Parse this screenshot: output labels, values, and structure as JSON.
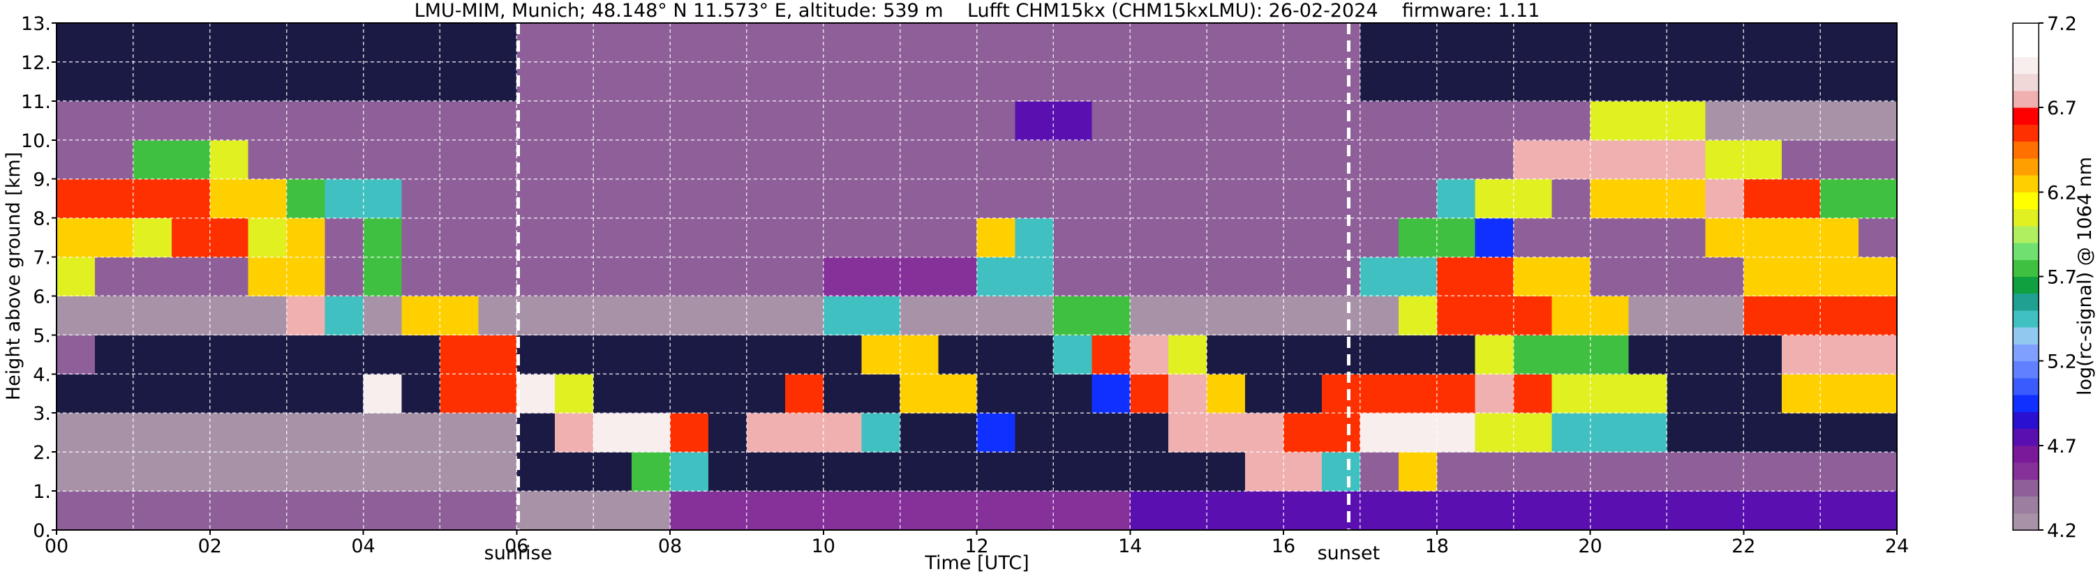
{
  "chart_data": {
    "type": "heatmap",
    "title": "LMU-MIM, Munich; 48.148° N 11.573° E, altitude: 539 m    Lufft CHM15kx (CHM15kxLMU): 26-02-2024    firmware: 1.11",
    "xlabel": "Time [UTC]",
    "ylabel": "Height above ground [km]",
    "xlim": [
      0,
      24
    ],
    "ylim": [
      0,
      13
    ],
    "xticks": [
      {
        "value": 0,
        "label": "00"
      },
      {
        "value": 2,
        "label": "02"
      },
      {
        "value": 4,
        "label": "04"
      },
      {
        "value": 6,
        "label": "06"
      },
      {
        "value": 8,
        "label": "08"
      },
      10,
      12,
      14,
      16,
      18,
      20,
      22,
      24
    ],
    "xminorticks": [
      1,
      3,
      5,
      7,
      9,
      11,
      13,
      15,
      17,
      19,
      21,
      23
    ],
    "yticks": [
      {
        "value": 0,
        "label": "0."
      },
      {
        "value": 1,
        "label": "1."
      },
      {
        "value": 2,
        "label": "2."
      },
      {
        "value": 3,
        "label": "3."
      },
      {
        "value": 4,
        "label": "4."
      },
      {
        "value": 5,
        "label": "5."
      },
      {
        "value": 6,
        "label": "6."
      },
      {
        "value": 7,
        "label": "7."
      },
      {
        "value": 8,
        "label": "8."
      },
      {
        "value": 9,
        "label": "9."
      },
      {
        "value": 10,
        "label": "10."
      },
      {
        "value": 11,
        "label": "11."
      },
      {
        "value": 12,
        "label": "12."
      },
      {
        "value": 13,
        "label": "13."
      }
    ],
    "grid": true,
    "annotations": [
      {
        "text": "sunrise",
        "x": 6.02
      },
      {
        "text": "sunset",
        "x": 16.85
      }
    ],
    "x": [
      0,
      0.5,
      1,
      1.5,
      2,
      2.5,
      3,
      3.5,
      4,
      4.5,
      5,
      5.5,
      6,
      6.5,
      7,
      7.5,
      8,
      8.5,
      9,
      9.5,
      10,
      10.5,
      11,
      11.5,
      12,
      12.5,
      13,
      13.5,
      14,
      14.5,
      15,
      15.5,
      16,
      16.5,
      17,
      17.5,
      18,
      18.5,
      19,
      19.5,
      20,
      20.5,
      21,
      21.5,
      22,
      22.5,
      23,
      23.5,
      24
    ],
    "y": [
      0,
      1,
      2,
      3,
      4,
      5,
      6,
      7,
      8,
      9,
      10,
      11,
      12,
      13
    ],
    "z": [
      [
        4.5,
        4.5,
        4.5,
        4.5,
        4.5,
        4.5,
        4.5,
        4.5,
        4.5,
        4.5,
        4.5,
        4.5,
        4.3,
        4.3,
        4.3,
        4.3,
        4.6,
        4.6,
        4.6,
        4.6,
        4.6,
        4.6,
        4.6,
        4.6,
        4.6,
        4.6,
        4.6,
        4.6,
        4.7,
        4.7,
        4.7,
        4.7,
        4.8,
        4.8,
        4.8,
        4.8,
        4.8,
        4.8,
        4.8,
        4.8,
        4.8,
        4.8,
        4.8,
        4.8,
        4.8,
        4.8,
        4.8,
        4.8
      ],
      [
        4.3,
        4.3,
        4.3,
        4.3,
        4.3,
        4.3,
        4.3,
        4.3,
        4.3,
        4.3,
        4.3,
        4.3,
        4.0,
        4.0,
        4.0,
        5.8,
        5.5,
        4.0,
        4.0,
        4.0,
        4.0,
        4.0,
        4.0,
        4.0,
        4.0,
        4.0,
        4.0,
        4.0,
        4.0,
        4.0,
        4.0,
        6.8,
        6.8,
        5.5,
        4.4,
        6.3,
        4.4,
        4.4,
        4.4,
        4.4,
        4.4,
        4.4,
        4.4,
        4.4,
        4.4,
        4.4,
        4.4,
        4.4
      ],
      [
        4.2,
        4.2,
        4.2,
        4.2,
        4.2,
        4.2,
        4.2,
        4.2,
        4.2,
        4.2,
        4.2,
        4.2,
        4.1,
        6.8,
        7.0,
        6.9,
        6.5,
        4.1,
        6.8,
        6.8,
        6.8,
        5.5,
        4.1,
        4.1,
        5.0,
        4.1,
        4.1,
        4.1,
        4.1,
        6.8,
        6.8,
        6.8,
        6.5,
        6.5,
        7.0,
        7.0,
        7.0,
        6.0,
        6.0,
        5.5,
        5.5,
        5.5,
        4.1,
        4.1,
        4.1,
        4.1,
        4.1,
        4.1
      ],
      [
        4.1,
        4.1,
        4.1,
        4.1,
        4.1,
        4.1,
        4.1,
        4.1,
        6.9,
        4.1,
        6.5,
        6.5,
        7.0,
        6.0,
        4.1,
        4.1,
        4.1,
        4.1,
        4.1,
        6.5,
        4.1,
        4.1,
        6.2,
        6.2,
        4.1,
        4.1,
        4.1,
        5.0,
        6.5,
        6.8,
        6.3,
        4.1,
        4.1,
        6.5,
        6.6,
        6.6,
        6.6,
        6.8,
        6.5,
        6.0,
        6.0,
        6.0,
        4.1,
        4.1,
        4.1,
        6.3,
        6.3,
        6.3
      ],
      [
        4.5,
        4.1,
        4.1,
        4.1,
        4.1,
        4.1,
        4.1,
        4.1,
        4.1,
        4.1,
        6.5,
        6.5,
        4.1,
        4.1,
        4.1,
        4.1,
        4.1,
        4.1,
        4.1,
        4.1,
        4.1,
        6.3,
        6.3,
        4.1,
        4.1,
        4.1,
        5.5,
        6.5,
        6.8,
        6.0,
        4.1,
        4.1,
        4.1,
        4.1,
        4.1,
        4.1,
        4.1,
        6.0,
        5.8,
        5.8,
        5.8,
        4.1,
        4.1,
        4.1,
        4.1,
        6.8,
        6.8,
        6.8
      ],
      [
        4.3,
        4.3,
        4.3,
        4.3,
        4.3,
        4.3,
        6.8,
        5.5,
        4.3,
        6.3,
        6.3,
        4.3,
        4.3,
        4.3,
        4.3,
        4.3,
        4.3,
        4.3,
        4.3,
        4.3,
        5.5,
        5.5,
        4.3,
        4.3,
        4.3,
        4.3,
        5.8,
        5.8,
        4.3,
        4.3,
        4.3,
        4.3,
        4.3,
        4.3,
        4.3,
        6.0,
        6.5,
        6.5,
        6.5,
        6.2,
        6.2,
        4.3,
        4.3,
        4.3,
        6.5,
        6.5,
        6.5,
        6.5
      ],
      [
        6.0,
        4.4,
        4.4,
        4.4,
        4.4,
        6.2,
        6.2,
        4.4,
        5.8,
        4.4,
        4.4,
        4.4,
        4.4,
        4.4,
        4.4,
        4.4,
        4.4,
        4.4,
        4.4,
        4.4,
        4.6,
        4.6,
        4.6,
        4.6,
        5.5,
        5.5,
        4.4,
        4.4,
        4.4,
        4.4,
        4.4,
        4.4,
        4.4,
        4.4,
        5.5,
        5.5,
        6.5,
        6.5,
        6.2,
        6.2,
        4.4,
        4.4,
        4.4,
        4.4,
        6.3,
        6.3,
        6.3,
        6.3
      ],
      [
        6.3,
        6.3,
        6.0,
        6.5,
        6.5,
        6.0,
        6.2,
        4.4,
        5.8,
        4.4,
        4.4,
        4.4,
        4.4,
        4.4,
        4.4,
        4.4,
        4.4,
        4.4,
        4.4,
        4.4,
        4.4,
        4.4,
        4.4,
        4.4,
        6.2,
        5.5,
        4.4,
        4.4,
        4.4,
        4.4,
        4.4,
        4.4,
        4.4,
        4.4,
        4.4,
        5.8,
        5.8,
        5.0,
        4.4,
        4.4,
        4.4,
        4.4,
        4.4,
        6.3,
        6.3,
        6.3,
        6.3,
        4.4
      ],
      [
        6.5,
        6.5,
        6.5,
        6.5,
        6.2,
        6.2,
        5.8,
        5.5,
        5.5,
        4.4,
        4.4,
        4.4,
        4.4,
        4.4,
        4.4,
        4.4,
        4.4,
        4.5,
        4.5,
        4.5,
        4.5,
        4.5,
        4.5,
        4.5,
        4.4,
        4.4,
        4.4,
        4.4,
        4.4,
        4.4,
        4.4,
        4.4,
        4.4,
        4.4,
        4.4,
        4.4,
        5.5,
        6.0,
        6.0,
        4.4,
        6.3,
        6.3,
        6.3,
        6.8,
        6.5,
        6.5,
        5.8,
        5.8
      ],
      [
        4.4,
        4.4,
        5.8,
        5.8,
        6.0,
        4.5,
        4.5,
        4.5,
        4.5,
        4.5,
        4.5,
        4.5,
        4.5,
        4.5,
        4.5,
        4.5,
        4.5,
        4.5,
        4.5,
        4.5,
        4.5,
        4.5,
        4.5,
        4.5,
        4.5,
        4.5,
        4.5,
        4.5,
        4.5,
        4.5,
        4.5,
        4.5,
        4.5,
        4.5,
        4.5,
        4.5,
        4.5,
        4.5,
        6.7,
        6.7,
        6.7,
        6.7,
        6.7,
        6.0,
        6.0,
        4.4,
        4.4,
        4.4
      ],
      [
        4.4,
        4.4,
        4.4,
        4.4,
        4.4,
        4.4,
        4.4,
        4.4,
        4.4,
        4.4,
        4.4,
        4.4,
        4.4,
        4.4,
        4.4,
        4.4,
        4.4,
        4.4,
        4.4,
        4.4,
        4.4,
        4.4,
        4.4,
        4.4,
        4.4,
        4.8,
        4.8,
        4.5,
        4.5,
        4.5,
        4.5,
        4.5,
        4.5,
        4.5,
        4.5,
        4.5,
        4.5,
        4.5,
        4.5,
        4.5,
        6.0,
        6.0,
        6.0,
        4.3,
        4.3,
        4.3,
        4.3,
        4.3
      ],
      [
        4.1,
        4.1,
        4.1,
        4.1,
        4.1,
        4.1,
        4.1,
        4.1,
        4.1,
        4.1,
        4.1,
        4.1,
        4.4,
        4.4,
        4.4,
        4.4,
        4.4,
        4.4,
        4.4,
        4.4,
        4.4,
        4.4,
        4.4,
        4.4,
        4.4,
        4.4,
        4.4,
        4.4,
        4.4,
        4.4,
        4.4,
        4.4,
        4.4,
        4.4,
        4.1,
        4.1,
        4.1,
        4.1,
        4.1,
        4.1,
        4.1,
        4.1,
        4.1,
        4.1,
        4.1,
        4.1,
        4.1,
        4.1
      ],
      [
        4.1,
        4.1,
        4.1,
        4.1,
        4.1,
        4.1,
        4.1,
        4.1,
        4.1,
        4.1,
        4.1,
        4.1,
        4.4,
        4.4,
        4.4,
        4.4,
        4.4,
        4.4,
        4.4,
        4.4,
        4.4,
        4.4,
        4.4,
        4.4,
        4.4,
        4.4,
        4.4,
        4.4,
        4.4,
        4.4,
        4.4,
        4.4,
        4.4,
        4.4,
        4.1,
        4.1,
        4.1,
        4.1,
        4.1,
        4.1,
        4.1,
        4.1,
        4.1,
        4.1,
        4.1,
        4.1,
        4.1,
        4.1
      ]
    ],
    "under_color": "#1b1a45",
    "colorbar": {
      "label": "log(rc-signal) @ 1064 nm",
      "lim": [
        4.2,
        7.2
      ],
      "ticks": [
        4.2,
        4.7,
        5.2,
        5.7,
        6.2,
        6.7,
        7.2
      ],
      "colors": [
        "#a892a8",
        "#9c7fa0",
        "#8f5f9a",
        "#86309a",
        "#7a1a9a",
        "#5a10b0",
        "#2a10d0",
        "#1030ff",
        "#3a5cff",
        "#6080ff",
        "#80a0ff",
        "#90c8f0",
        "#40c0c0",
        "#20a090",
        "#10a040",
        "#40c040",
        "#70e070",
        "#b0f060",
        "#e0f020",
        "#ffff00",
        "#ffd000",
        "#ffa000",
        "#ff7000",
        "#ff3000",
        "#ff0000",
        "#f0b0b0",
        "#f0d8d8",
        "#f8eeee",
        "#ffffff",
        "#ffffff"
      ]
    }
  }
}
